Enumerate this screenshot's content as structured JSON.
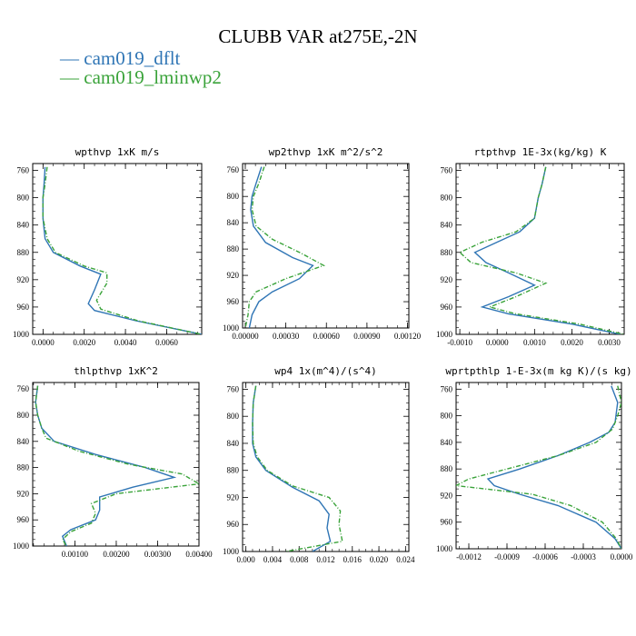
{
  "title": "CLUBB VAR at275E,-2N",
  "legend": [
    {
      "label": "cam019_dflt",
      "color": "#2f75b5"
    },
    {
      "label": "cam019_lminwp2",
      "color": "#3aa33a"
    }
  ],
  "chart_data": [
    {
      "type": "line",
      "title": "wpthvp   1xK m/s",
      "xlim": [
        -0.0005,
        0.0077
      ],
      "ylim": [
        1000,
        750
      ],
      "xticks": [
        "0.0000",
        "0.0020",
        "0.0040",
        "0.0060"
      ],
      "xtick_values": [
        0,
        0.002,
        0.004,
        0.006
      ],
      "yticks": [
        760,
        800,
        840,
        880,
        920,
        960,
        1000
      ],
      "series": [
        {
          "name": "cam019_dflt",
          "points": [
            [
              0.0001,
              755
            ],
            [
              5e-05,
              780
            ],
            [
              0.0,
              800
            ],
            [
              0.0,
              830
            ],
            [
              0.0001,
              860
            ],
            [
              0.0005,
              880
            ],
            [
              0.0018,
              900
            ],
            [
              0.0028,
              912
            ],
            [
              0.0025,
              935
            ],
            [
              0.0022,
              955
            ],
            [
              0.0025,
              965
            ],
            [
              0.0045,
              980
            ],
            [
              0.0077,
              1000
            ]
          ]
        },
        {
          "name": "cam019_lminwp2",
          "points": [
            [
              0.0002,
              755
            ],
            [
              0.0001,
              780
            ],
            [
              0.0,
              800
            ],
            [
              0.0,
              830
            ],
            [
              0.0002,
              860
            ],
            [
              0.0006,
              880
            ],
            [
              0.002,
              900
            ],
            [
              0.0031,
              910
            ],
            [
              0.0031,
              925
            ],
            [
              0.0026,
              950
            ],
            [
              0.0028,
              963
            ],
            [
              0.0046,
              980
            ],
            [
              0.0077,
              1000
            ]
          ]
        }
      ]
    },
    {
      "type": "line",
      "title": "wp2thvp   1xK m^2/s^2",
      "xlim": [
        -2e-05,
        0.00121
      ],
      "ylim": [
        1000,
        750
      ],
      "xticks": [
        "0.00000",
        "0.00030",
        "0.00060",
        "0.00090",
        "0.00120"
      ],
      "xtick_values": [
        0,
        0.0003,
        0.0006,
        0.0009,
        0.0012
      ],
      "yticks": [
        760,
        800,
        840,
        880,
        920,
        960,
        1000
      ],
      "series": [
        {
          "name": "cam019_dflt",
          "points": [
            [
              0.00012,
              755
            ],
            [
              8e-05,
              780
            ],
            [
              5e-05,
              800
            ],
            [
              4e-05,
              820
            ],
            [
              6e-05,
              845
            ],
            [
              0.00015,
              870
            ],
            [
              0.00035,
              893
            ],
            [
              0.0005,
              905
            ],
            [
              0.0004,
              925
            ],
            [
              0.0002,
              945
            ],
            [
              0.0001,
              960
            ],
            [
              5e-05,
              980
            ],
            [
              3e-05,
              1000
            ]
          ]
        },
        {
          "name": "cam019_lminwp2",
          "points": [
            [
              0.00014,
              755
            ],
            [
              0.0001,
              780
            ],
            [
              6e-05,
              800
            ],
            [
              5e-05,
              820
            ],
            [
              8e-05,
              845
            ],
            [
              0.0002,
              865
            ],
            [
              0.0004,
              885
            ],
            [
              0.00058,
              905
            ],
            [
              0.0003,
              925
            ],
            [
              8e-05,
              945
            ],
            [
              3e-05,
              960
            ],
            [
              2e-05,
              980
            ],
            [
              0.0,
              1000
            ]
          ]
        }
      ]
    },
    {
      "type": "line",
      "title": "rtpthvp   1E-3x(kg/kg) K",
      "xlim": [
        -0.0011,
        0.0034
      ],
      "ylim": [
        1000,
        750
      ],
      "xticks": [
        "-0.0010",
        "0.0000",
        "0.0010",
        "0.0020",
        "0.0030"
      ],
      "xtick_values": [
        -0.001,
        0,
        0.001,
        0.002,
        0.003
      ],
      "yticks": [
        760,
        800,
        840,
        880,
        920,
        960,
        1000
      ],
      "series": [
        {
          "name": "cam019_dflt",
          "points": [
            [
              0.0013,
              755
            ],
            [
              0.0012,
              780
            ],
            [
              0.0011,
              800
            ],
            [
              0.001,
              830
            ],
            [
              0.0006,
              850
            ],
            [
              0.0,
              865
            ],
            [
              -0.0006,
              880
            ],
            [
              -0.0003,
              895
            ],
            [
              0.0003,
              910
            ],
            [
              0.001,
              928
            ],
            [
              0.0003,
              945
            ],
            [
              -0.0004,
              960
            ],
            [
              0.0003,
              970
            ],
            [
              0.002,
              985
            ],
            [
              0.0033,
              1000
            ]
          ]
        },
        {
          "name": "cam019_lminwp2",
          "points": [
            [
              0.0013,
              755
            ],
            [
              0.0012,
              780
            ],
            [
              0.0011,
              800
            ],
            [
              0.001,
              830
            ],
            [
              0.0005,
              850
            ],
            [
              -0.0004,
              865
            ],
            [
              -0.001,
              880
            ],
            [
              -0.0007,
              895
            ],
            [
              0.0005,
              910
            ],
            [
              0.0013,
              925
            ],
            [
              0.0005,
              945
            ],
            [
              -0.0002,
              960
            ],
            [
              0.0005,
              970
            ],
            [
              0.0022,
              985
            ],
            [
              0.0034,
              1000
            ]
          ]
        }
      ]
    },
    {
      "type": "line",
      "title": "thlpthvp   1xK^2",
      "xlim": [
        -2e-05,
        0.004
      ],
      "ylim": [
        1000,
        750
      ],
      "xticks": [
        "0.00100",
        "0.00200",
        "0.00300",
        "0.00400"
      ],
      "xtick_values": [
        0.001,
        0.002,
        0.003,
        0.004
      ],
      "yticks": [
        760,
        800,
        840,
        880,
        920,
        960,
        1000
      ],
      "series": [
        {
          "name": "cam019_dflt",
          "points": [
            [
              0.0001,
              755
            ],
            [
              5e-05,
              780
            ],
            [
              0.0001,
              800
            ],
            [
              0.0002,
              820
            ],
            [
              0.0005,
              840
            ],
            [
              0.0015,
              860
            ],
            [
              0.0027,
              880
            ],
            [
              0.0034,
              895
            ],
            [
              0.0024,
              910
            ],
            [
              0.0016,
              925
            ],
            [
              0.0016,
              945
            ],
            [
              0.0015,
              960
            ],
            [
              0.0009,
              975
            ],
            [
              0.0007,
              985
            ],
            [
              0.0008,
              1000
            ]
          ]
        },
        {
          "name": "cam019_lminwp2",
          "points": [
            [
              0.0001,
              755
            ],
            [
              5e-05,
              780
            ],
            [
              0.0001,
              800
            ],
            [
              0.0002,
              820
            ],
            [
              0.0003,
              835
            ],
            [
              0.0011,
              855
            ],
            [
              0.0023,
              875
            ],
            [
              0.0036,
              890
            ],
            [
              0.004,
              905
            ],
            [
              0.002,
              920
            ],
            [
              0.0014,
              935
            ],
            [
              0.0015,
              950
            ],
            [
              0.0014,
              965
            ],
            [
              0.0009,
              978
            ],
            [
              0.0007,
              990
            ],
            [
              0.0008,
              1000
            ]
          ]
        }
      ]
    },
    {
      "type": "line",
      "title": "wp4   1x(m^4)/(s^4)",
      "xlim": [
        -0.0005,
        0.0245
      ],
      "ylim": [
        1000,
        750
      ],
      "xticks": [
        "0.000",
        "0.004",
        "0.008",
        "0.012",
        "0.016",
        "0.020",
        "0.024"
      ],
      "xtick_values": [
        0,
        0.004,
        0.008,
        0.012,
        0.016,
        0.02,
        0.024
      ],
      "yticks": [
        760,
        800,
        840,
        880,
        920,
        960,
        1000
      ],
      "series": [
        {
          "name": "cam019_dflt",
          "points": [
            [
              0.0015,
              755
            ],
            [
              0.0011,
              780
            ],
            [
              0.001,
              810
            ],
            [
              0.001,
              840
            ],
            [
              0.0015,
              860
            ],
            [
              0.003,
              880
            ],
            [
              0.007,
              905
            ],
            [
              0.011,
              925
            ],
            [
              0.0125,
              945
            ],
            [
              0.0122,
              965
            ],
            [
              0.0127,
              985
            ],
            [
              0.01,
              1000
            ]
          ]
        },
        {
          "name": "cam019_lminwp2",
          "points": [
            [
              0.0015,
              755
            ],
            [
              0.0011,
              780
            ],
            [
              0.001,
              810
            ],
            [
              0.0011,
              840
            ],
            [
              0.0017,
              860
            ],
            [
              0.0032,
              880
            ],
            [
              0.007,
              903
            ],
            [
              0.0125,
              920
            ],
            [
              0.0142,
              940
            ],
            [
              0.014,
              960
            ],
            [
              0.0145,
              985
            ],
            [
              0.006,
              1000
            ]
          ]
        }
      ]
    },
    {
      "type": "line",
      "title": "wprtpthlp   1-E-3x(m kg K)/(s kg)",
      "xlim": [
        -0.0013,
        0.0
      ],
      "ylim": [
        1000,
        750
      ],
      "xticks": [
        "-0.0012",
        "-0.0009",
        "-0.0006",
        "-0.0003",
        "0.0000"
      ],
      "xtick_values": [
        -0.0012,
        -0.0009,
        -0.0006,
        -0.0003,
        0
      ],
      "yticks": [
        760,
        800,
        840,
        880,
        920,
        960,
        1000
      ],
      "series": [
        {
          "name": "cam019_dflt",
          "points": [
            [
              -8e-05,
              755
            ],
            [
              -3e-05,
              780
            ],
            [
              -5e-05,
              810
            ],
            [
              -0.0001,
              825
            ],
            [
              -0.00025,
              840
            ],
            [
              -0.0005,
              860
            ],
            [
              -0.0008,
              880
            ],
            [
              -0.00105,
              895
            ],
            [
              -0.001,
              905
            ],
            [
              -0.0008,
              918
            ],
            [
              -0.0005,
              935
            ],
            [
              -0.0002,
              960
            ],
            [
              -5e-05,
              985
            ],
            [
              0.0,
              1000
            ]
          ]
        },
        {
          "name": "cam019_lminwp2",
          "points": [
            [
              -3e-05,
              755
            ],
            [
              0.0,
              780
            ],
            [
              -3e-05,
              800
            ],
            [
              -7e-05,
              820
            ],
            [
              -0.0002,
              840
            ],
            [
              -0.0005,
              860
            ],
            [
              -0.0009,
              880
            ],
            [
              -0.0012,
              895
            ],
            [
              -0.0013,
              905
            ],
            [
              -0.0007,
              918
            ],
            [
              -0.0004,
              935
            ],
            [
              -0.00015,
              960
            ],
            [
              -4e-05,
              985
            ],
            [
              0.0,
              1000
            ]
          ]
        }
      ]
    }
  ]
}
